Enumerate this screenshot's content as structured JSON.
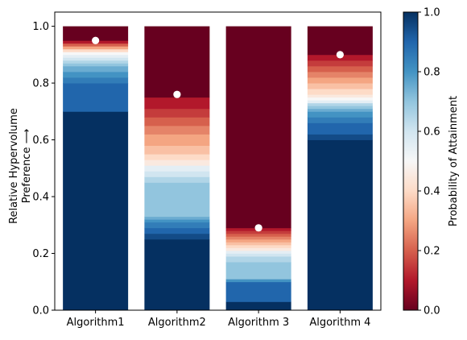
{
  "chart_data": {
    "type": "bar",
    "categories": [
      "Algorithm1",
      "Algorithm2",
      "Algorithm 3",
      "Algorithm 4"
    ],
    "ylabel_line1": "Relative Hypervolume",
    "ylabel_line2": "Preference ⟶",
    "ylim": [
      0,
      1.05
    ],
    "yticks": [
      "0.0",
      "0.2",
      "0.4",
      "0.6",
      "0.8",
      "1.0"
    ],
    "colorbar": {
      "label": "Probability of Attainment",
      "range": [
        0,
        1
      ],
      "ticks": [
        "0.0",
        "0.2",
        "0.4",
        "0.6",
        "0.8",
        "1.0"
      ],
      "colormap": "RdBu"
    },
    "markers": [
      0.95,
      0.76,
      0.29,
      0.9
    ],
    "marker_color": "#ffffff",
    "bar_segments": [
      [
        {
          "y0": 0.0,
          "y1": 0.7,
          "p": 1.0
        },
        {
          "y0": 0.7,
          "y1": 0.8,
          "p": 0.9
        },
        {
          "y0": 0.8,
          "y1": 0.82,
          "p": 0.85
        },
        {
          "y0": 0.82,
          "y1": 0.84,
          "p": 0.8
        },
        {
          "y0": 0.84,
          "y1": 0.86,
          "p": 0.75
        },
        {
          "y0": 0.86,
          "y1": 0.87,
          "p": 0.7
        },
        {
          "y0": 0.87,
          "y1": 0.88,
          "p": 0.65
        },
        {
          "y0": 0.88,
          "y1": 0.89,
          "p": 0.6
        },
        {
          "y0": 0.89,
          "y1": 0.9,
          "p": 0.55
        },
        {
          "y0": 0.9,
          "y1": 0.91,
          "p": 0.5
        },
        {
          "y0": 0.91,
          "y1": 0.92,
          "p": 0.4
        },
        {
          "y0": 0.92,
          "y1": 0.93,
          "p": 0.3
        },
        {
          "y0": 0.93,
          "y1": 0.94,
          "p": 0.2
        },
        {
          "y0": 0.94,
          "y1": 0.95,
          "p": 0.1
        },
        {
          "y0": 0.95,
          "y1": 1.0,
          "p": 0.0
        }
      ],
      [
        {
          "y0": 0.0,
          "y1": 0.25,
          "p": 1.0
        },
        {
          "y0": 0.25,
          "y1": 0.27,
          "p": 0.95
        },
        {
          "y0": 0.27,
          "y1": 0.29,
          "p": 0.9
        },
        {
          "y0": 0.29,
          "y1": 0.31,
          "p": 0.85
        },
        {
          "y0": 0.31,
          "y1": 0.32,
          "p": 0.8
        },
        {
          "y0": 0.32,
          "y1": 0.33,
          "p": 0.75
        },
        {
          "y0": 0.33,
          "y1": 0.45,
          "p": 0.7
        },
        {
          "y0": 0.45,
          "y1": 0.47,
          "p": 0.65
        },
        {
          "y0": 0.47,
          "y1": 0.49,
          "p": 0.6
        },
        {
          "y0": 0.49,
          "y1": 0.51,
          "p": 0.55
        },
        {
          "y0": 0.51,
          "y1": 0.53,
          "p": 0.45
        },
        {
          "y0": 0.53,
          "y1": 0.55,
          "p": 0.4
        },
        {
          "y0": 0.55,
          "y1": 0.58,
          "p": 0.35
        },
        {
          "y0": 0.58,
          "y1": 0.62,
          "p": 0.3
        },
        {
          "y0": 0.62,
          "y1": 0.65,
          "p": 0.25
        },
        {
          "y0": 0.65,
          "y1": 0.68,
          "p": 0.2
        },
        {
          "y0": 0.68,
          "y1": 0.71,
          "p": 0.15
        },
        {
          "y0": 0.71,
          "y1": 0.75,
          "p": 0.1
        },
        {
          "y0": 0.75,
          "y1": 1.0,
          "p": 0.0
        }
      ],
      [
        {
          "y0": 0.0,
          "y1": 0.03,
          "p": 1.0
        },
        {
          "y0": 0.03,
          "y1": 0.1,
          "p": 0.9
        },
        {
          "y0": 0.1,
          "y1": 0.11,
          "p": 0.8
        },
        {
          "y0": 0.11,
          "y1": 0.17,
          "p": 0.7
        },
        {
          "y0": 0.17,
          "y1": 0.19,
          "p": 0.65
        },
        {
          "y0": 0.19,
          "y1": 0.2,
          "p": 0.6
        },
        {
          "y0": 0.2,
          "y1": 0.21,
          "p": 0.55
        },
        {
          "y0": 0.21,
          "y1": 0.22,
          "p": 0.45
        },
        {
          "y0": 0.22,
          "y1": 0.23,
          "p": 0.4
        },
        {
          "y0": 0.23,
          "y1": 0.24,
          "p": 0.35
        },
        {
          "y0": 0.24,
          "y1": 0.25,
          "p": 0.3
        },
        {
          "y0": 0.25,
          "y1": 0.26,
          "p": 0.25
        },
        {
          "y0": 0.26,
          "y1": 0.27,
          "p": 0.2
        },
        {
          "y0": 0.27,
          "y1": 0.28,
          "p": 0.15
        },
        {
          "y0": 0.28,
          "y1": 0.29,
          "p": 0.1
        },
        {
          "y0": 0.29,
          "y1": 1.0,
          "p": 0.0
        }
      ],
      [
        {
          "y0": 0.0,
          "y1": 0.6,
          "p": 1.0
        },
        {
          "y0": 0.6,
          "y1": 0.62,
          "p": 0.95
        },
        {
          "y0": 0.62,
          "y1": 0.66,
          "p": 0.9
        },
        {
          "y0": 0.66,
          "y1": 0.68,
          "p": 0.85
        },
        {
          "y0": 0.68,
          "y1": 0.7,
          "p": 0.8
        },
        {
          "y0": 0.7,
          "y1": 0.71,
          "p": 0.75
        },
        {
          "y0": 0.71,
          "y1": 0.72,
          "p": 0.7
        },
        {
          "y0": 0.72,
          "y1": 0.73,
          "p": 0.65
        },
        {
          "y0": 0.73,
          "y1": 0.74,
          "p": 0.55
        },
        {
          "y0": 0.74,
          "y1": 0.75,
          "p": 0.5
        },
        {
          "y0": 0.75,
          "y1": 0.76,
          "p": 0.45
        },
        {
          "y0": 0.76,
          "y1": 0.78,
          "p": 0.4
        },
        {
          "y0": 0.78,
          "y1": 0.8,
          "p": 0.35
        },
        {
          "y0": 0.8,
          "y1": 0.82,
          "p": 0.3
        },
        {
          "y0": 0.82,
          "y1": 0.84,
          "p": 0.25
        },
        {
          "y0": 0.84,
          "y1": 0.86,
          "p": 0.2
        },
        {
          "y0": 0.86,
          "y1": 0.88,
          "p": 0.15
        },
        {
          "y0": 0.88,
          "y1": 0.9,
          "p": 0.1
        },
        {
          "y0": 0.9,
          "y1": 1.0,
          "p": 0.0
        }
      ]
    ]
  }
}
